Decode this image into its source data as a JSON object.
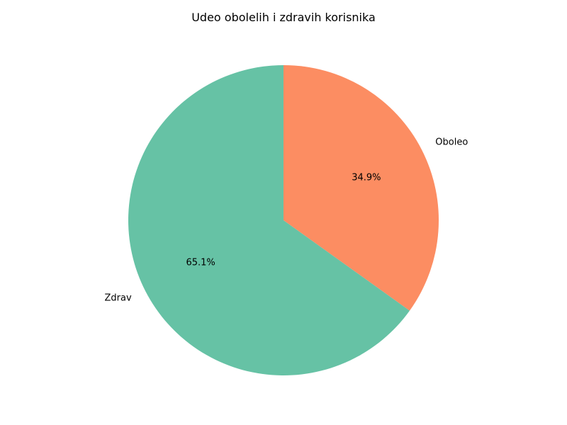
{
  "chart_data": {
    "type": "pie",
    "title": "Udeo obolelih i zdravih korisnika",
    "start_angle_deg": 90,
    "direction": "clockwise",
    "slices": [
      {
        "label": "Oboleo",
        "value": 34.9,
        "pct_label": "34.9%",
        "color": "#fc8d62"
      },
      {
        "label": "Zdrav",
        "value": 65.1,
        "pct_label": "65.1%",
        "color": "#66c2a5"
      }
    ]
  }
}
